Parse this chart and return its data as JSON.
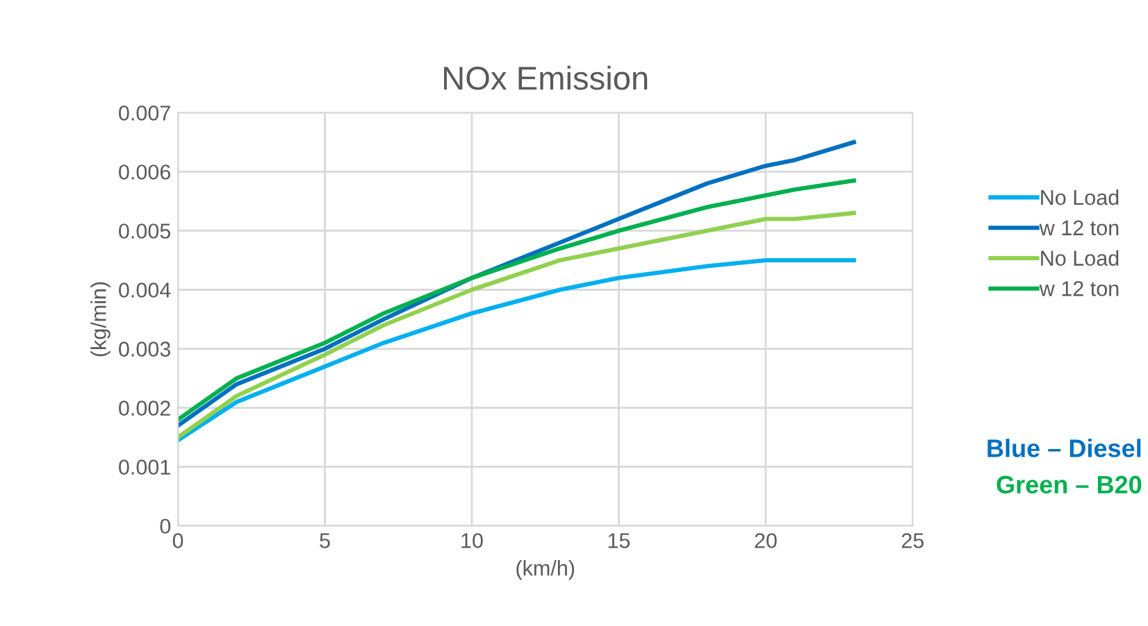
{
  "chart_data": {
    "type": "line",
    "title": "NOx Emission",
    "xlabel": "(km/h)",
    "ylabel": "(kg/min)",
    "x": [
      0,
      2,
      5,
      7,
      10,
      13,
      15,
      18,
      20,
      21,
      23
    ],
    "series": [
      {
        "name": "No Load",
        "color": "#00b0f0",
        "values": [
          0.00145,
          0.0021,
          0.0027,
          0.0031,
          0.0036,
          0.004,
          0.0042,
          0.0044,
          0.0045,
          0.0045,
          0.0045
        ]
      },
      {
        "name": "w 12 ton",
        "color": "#0070c0",
        "values": [
          0.0017,
          0.0024,
          0.003,
          0.0035,
          0.0042,
          0.0048,
          0.0052,
          0.0058,
          0.0061,
          0.0062,
          0.0065
        ]
      },
      {
        "name": "No Load",
        "color": "#92d050",
        "values": [
          0.0015,
          0.0022,
          0.0029,
          0.0034,
          0.004,
          0.0045,
          0.0047,
          0.005,
          0.0052,
          0.0052,
          0.0053
        ]
      },
      {
        "name": "w 12 ton",
        "color": "#00b050",
        "values": [
          0.0018,
          0.0025,
          0.0031,
          0.0036,
          0.0042,
          0.0047,
          0.005,
          0.0054,
          0.0056,
          0.0057,
          0.00585
        ]
      }
    ],
    "xlim": [
      0,
      25
    ],
    "xticks": [
      0,
      5,
      10,
      15,
      20,
      25
    ],
    "ylim": [
      0,
      0.007
    ],
    "yticks": [
      {
        "value": 0,
        "label": "0"
      },
      0.001,
      0.002,
      0.003,
      0.004,
      0.005,
      0.006,
      0.007
    ],
    "grid": true,
    "legend": "right",
    "marker": "none",
    "line_style": "solid",
    "annotations": [
      "Blue – Diesel",
      "Green – B20"
    ]
  }
}
